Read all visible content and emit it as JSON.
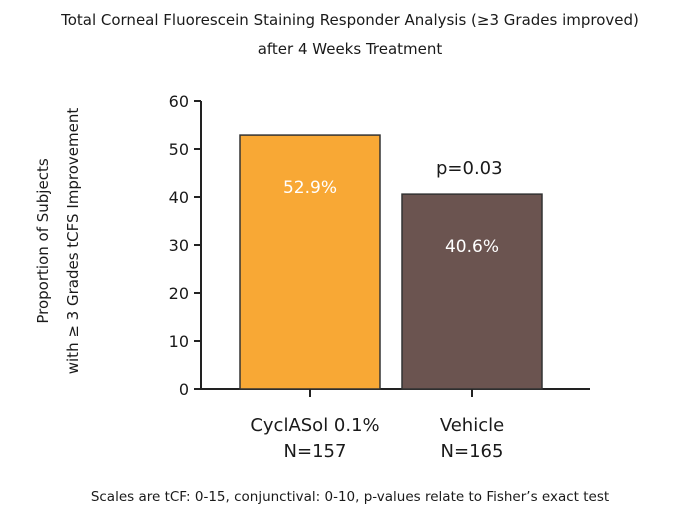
{
  "chart_data": {
    "type": "bar",
    "title": "Total Corneal Fluorescein Staining Responder Analysis (≥3 Grades improved)",
    "subtitle": "after 4 Weeks Treatment",
    "ylabel_line1": "Proportion of Subjects",
    "ylabel_line2": "with ≥ 3 Grades tCFS Improvement",
    "ylim": [
      0,
      60
    ],
    "yticks": [
      0,
      10,
      20,
      30,
      40,
      50,
      60
    ],
    "categories": [
      {
        "name": "CyclASol 0.1%",
        "n": "N=157"
      },
      {
        "name": "Vehicle",
        "n": "N=165"
      }
    ],
    "values": [
      52.9,
      40.6
    ],
    "value_labels": [
      "52.9%",
      "40.6%"
    ],
    "colors": [
      "#F8A835",
      "#6B5450"
    ],
    "annotation": "p=0.03",
    "grid": false
  },
  "footer": "Scales are tCF: 0-15, conjunctival: 0-10, p-values relate to Fisher’s exact test"
}
